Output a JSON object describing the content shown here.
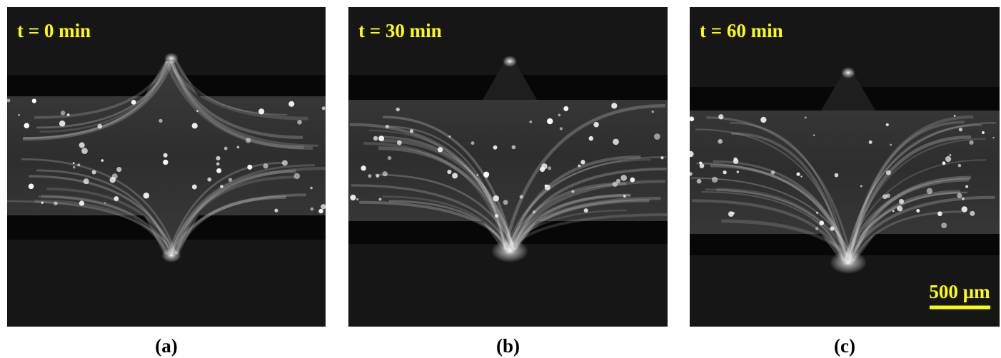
{
  "panels": [
    {
      "time": "t = 0 min",
      "label": "(a)"
    },
    {
      "time": "t = 30 min",
      "label": "(b)"
    },
    {
      "time": "t = 60 min",
      "label": "(c)"
    }
  ],
  "scale_bar": "500 µm"
}
